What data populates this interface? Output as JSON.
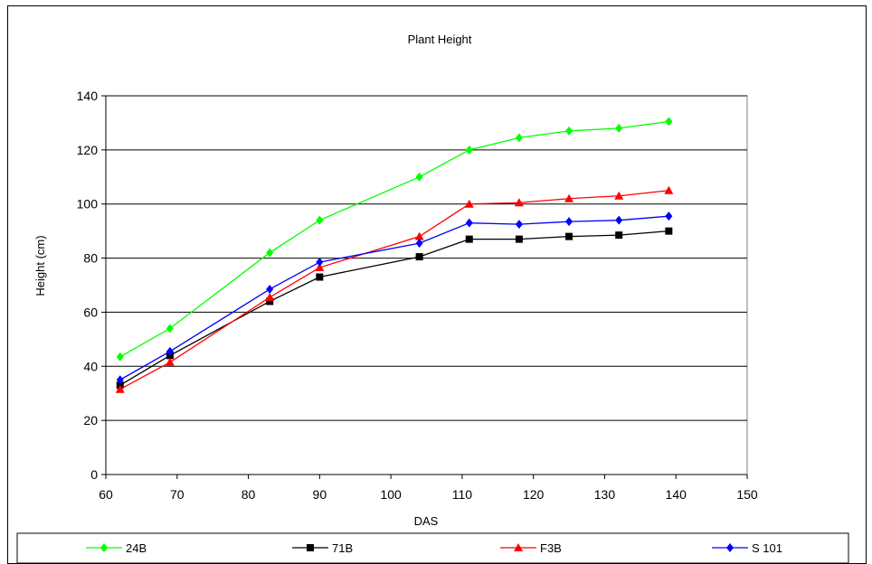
{
  "chart_data": {
    "type": "line",
    "title": "Plant Height",
    "xlabel": "DAS",
    "ylabel": "Height (cm)",
    "xlim": [
      60,
      150
    ],
    "ylim": [
      0,
      140
    ],
    "xticks": [
      60,
      70,
      80,
      90,
      100,
      110,
      120,
      130,
      140,
      150
    ],
    "yticks": [
      0,
      20,
      40,
      60,
      80,
      100,
      120,
      140
    ],
    "grid": "horizontal",
    "legend_position": "bottom",
    "x": [
      62,
      69,
      83,
      90,
      104,
      111,
      118,
      125,
      132,
      139
    ],
    "series": [
      {
        "name": "24B",
        "color": "#00ff00",
        "marker": "diamond",
        "values": [
          43.5,
          54,
          82,
          94,
          110,
          120,
          124.5,
          127,
          128,
          130.5
        ]
      },
      {
        "name": "71B",
        "color": "#000000",
        "marker": "square",
        "values": [
          33,
          44,
          64,
          73,
          80.5,
          87,
          87,
          88,
          88.5,
          90
        ]
      },
      {
        "name": "F3B",
        "color": "#ff0000",
        "marker": "triangle",
        "values": [
          31.5,
          41.5,
          65.5,
          76.5,
          88,
          100,
          100.5,
          102,
          103,
          105
        ]
      },
      {
        "name": "S 101",
        "color": "#0000ff",
        "marker": "diamond",
        "values": [
          35,
          45.5,
          68.5,
          78.5,
          85.5,
          93,
          92.5,
          93.5,
          94,
          95.5
        ]
      }
    ]
  }
}
